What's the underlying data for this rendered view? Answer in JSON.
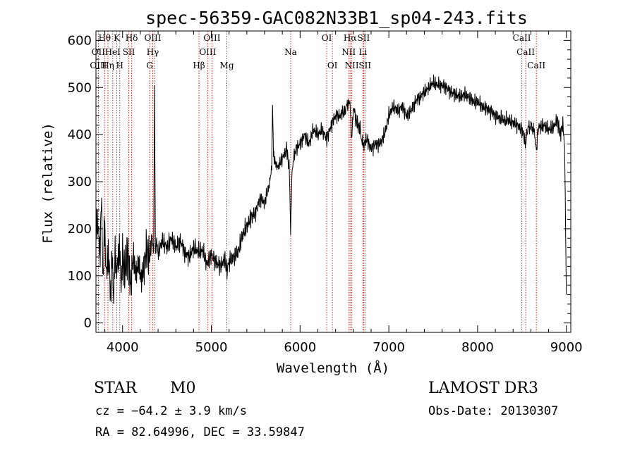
{
  "chart_data": {
    "type": "line",
    "title": "spec-56359-GAC082N33B1_sp04-243.fits",
    "xlabel": "Wavelength (Å)",
    "ylabel": "Flux (relative)",
    "xlim": [
      3700,
      9050
    ],
    "ylim": [
      -20,
      620
    ],
    "xticks": [
      4000,
      5000,
      6000,
      7000,
      8000,
      9000
    ],
    "yticks": [
      0,
      100,
      200,
      300,
      400,
      500,
      600
    ],
    "xtick_labels": [
      "4000",
      "5000",
      "6000",
      "7000",
      "8000",
      "9000"
    ],
    "ytick_labels": [
      "0",
      "100",
      "200",
      "300",
      "400",
      "500",
      "600"
    ],
    "series": [
      {
        "name": "flux",
        "x": [
          3700,
          3720,
          3740,
          3760,
          3780,
          3800,
          3820,
          3840,
          3860,
          3880,
          3900,
          3920,
          3940,
          3960,
          3980,
          4000,
          4030,
          4060,
          4090,
          4120,
          4150,
          4180,
          4210,
          4240,
          4270,
          4300,
          4330,
          4350,
          4360,
          4370,
          4380,
          4400,
          4450,
          4500,
          4550,
          4600,
          4650,
          4700,
          4750,
          4800,
          4850,
          4900,
          4950,
          5000,
          5050,
          5100,
          5150,
          5180,
          5200,
          5250,
          5300,
          5350,
          5400,
          5450,
          5500,
          5550,
          5600,
          5650,
          5680,
          5690,
          5700,
          5720,
          5750,
          5800,
          5850,
          5880,
          5893,
          5910,
          5950,
          6000,
          6050,
          6100,
          6150,
          6200,
          6250,
          6300,
          6350,
          6400,
          6450,
          6500,
          6540,
          6563,
          6580,
          6600,
          6620,
          6650,
          6680,
          6700,
          6720,
          6750,
          6800,
          6850,
          6900,
          6950,
          7000,
          7050,
          7100,
          7150,
          7200,
          7250,
          7300,
          7350,
          7400,
          7450,
          7500,
          7550,
          7600,
          7650,
          7700,
          7750,
          7800,
          7850,
          7900,
          7950,
          8000,
          8050,
          8100,
          8150,
          8200,
          8250,
          8300,
          8350,
          8400,
          8450,
          8500,
          8520,
          8542,
          8560,
          8600,
          8640,
          8662,
          8680,
          8700,
          8750,
          8800,
          8850,
          8900,
          8930,
          8960,
          8980,
          9000
        ],
        "y": [
          180,
          230,
          140,
          250,
          110,
          200,
          90,
          160,
          60,
          130,
          70,
          150,
          100,
          170,
          90,
          130,
          110,
          150,
          80,
          140,
          100,
          130,
          90,
          120,
          160,
          130,
          180,
          160,
          490,
          160,
          170,
          150,
          175,
          160,
          180,
          160,
          175,
          150,
          140,
          160,
          150,
          155,
          125,
          145,
          130,
          120,
          135,
          110,
          130,
          140,
          150,
          185,
          205,
          225,
          235,
          265,
          255,
          290,
          330,
          470,
          360,
          340,
          330,
          350,
          370,
          320,
          190,
          330,
          370,
          380,
          400,
          380,
          410,
          400,
          410,
          390,
          420,
          440,
          440,
          450,
          465,
          470,
          380,
          460,
          440,
          420,
          410,
          380,
          380,
          390,
          370,
          380,
          380,
          400,
          440,
          460,
          450,
          460,
          440,
          450,
          470,
          480,
          490,
          500,
          510,
          505,
          505,
          500,
          490,
          485,
          480,
          485,
          480,
          470,
          470,
          460,
          455,
          450,
          440,
          435,
          430,
          430,
          425,
          420,
          410,
          395,
          380,
          410,
          420,
          405,
          365,
          410,
          415,
          420,
          410,
          415,
          430,
          400,
          420,
          380,
          60
        ]
      }
    ],
    "lines": [
      {
        "label": "Hθ",
        "x": 3798,
        "row": 0
      },
      {
        "label": "OII",
        "x": 3727,
        "row": 1
      },
      {
        "label": "OIII",
        "x": 3727,
        "row": 2
      },
      {
        "label": "Hη",
        "x": 3835,
        "row": 2
      },
      {
        "label": "HeI",
        "x": 3889,
        "row": 1
      },
      {
        "label": "K",
        "x": 3934,
        "row": 0
      },
      {
        "label": "H",
        "x": 3968,
        "row": 2
      },
      {
        "label": "SII",
        "x": 4070,
        "row": 1
      },
      {
        "label": "Hδ",
        "x": 4102,
        "row": 0
      },
      {
        "label": "G",
        "x": 4305,
        "row": 2
      },
      {
        "label": "OIII",
        "x": 4340,
        "row": 0
      },
      {
        "label": "Hγ",
        "x": 4340,
        "row": 1
      },
      {
        "label": "OIII",
        "x": 4363,
        "row": -1
      },
      {
        "label": "Hβ",
        "x": 4861,
        "row": 2
      },
      {
        "label": "OIII",
        "x": 4959,
        "row": 1
      },
      {
        "label": "OIII",
        "x": 5007,
        "row": 0
      },
      {
        "label": "Mg",
        "x": 5175,
        "row": 2
      },
      {
        "label": "Na",
        "x": 5894,
        "row": 1
      },
      {
        "label": "OI",
        "x": 6300,
        "row": 0
      },
      {
        "label": "OI",
        "x": 6364,
        "row": 2
      },
      {
        "label": "Hα",
        "x": 6563,
        "row": 0
      },
      {
        "label": "NII",
        "x": 6548,
        "row": 1
      },
      {
        "label": "NII",
        "x": 6583,
        "row": 2
      },
      {
        "label": "SII",
        "x": 6716,
        "row": 0
      },
      {
        "label": "Li",
        "x": 6708,
        "row": 1
      },
      {
        "label": "SII",
        "x": 6731,
        "row": 2
      },
      {
        "label": "CaII",
        "x": 8498,
        "row": 0
      },
      {
        "label": "CaII",
        "x": 8542,
        "row": 1
      },
      {
        "label": "CaII",
        "x": 8662,
        "row": 2
      }
    ]
  },
  "info": {
    "class": "STAR",
    "subclass": "M0",
    "survey": "LAMOST DR3",
    "cz": "cz = −64.2 ± 3.9 km/s",
    "obs_date": "Obs-Date: 20130307",
    "coords": "RA =  82.64996, DEC =  33.59847"
  },
  "colors": {
    "line_marker": "#c8281e",
    "spectrum": "#000000",
    "axis": "#000000"
  }
}
